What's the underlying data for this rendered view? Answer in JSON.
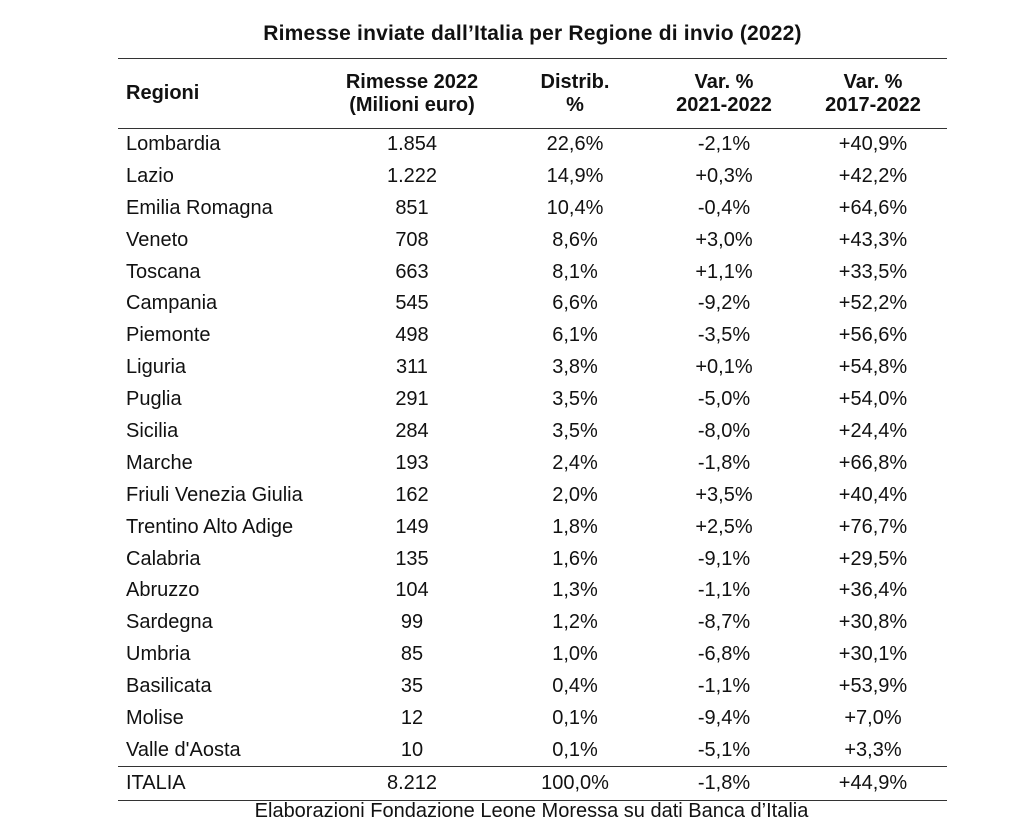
{
  "title": "Rimesse inviate dall’Italia per Regione di invio (2022)",
  "columns": [
    [
      "Regioni"
    ],
    [
      "Rimesse 2022",
      "(Milioni euro)"
    ],
    [
      "Distrib.",
      "%"
    ],
    [
      "Var. %",
      "2021-2022"
    ],
    [
      "Var. %",
      "2017-2022"
    ]
  ],
  "rows": [
    [
      "Lombardia",
      "1.854",
      "22,6%",
      "-2,1%",
      "+40,9%"
    ],
    [
      "Lazio",
      "1.222",
      "14,9%",
      "+0,3%",
      "+42,2%"
    ],
    [
      "Emilia Romagna",
      "851",
      "10,4%",
      "-0,4%",
      "+64,6%"
    ],
    [
      "Veneto",
      "708",
      "8,6%",
      "+3,0%",
      "+43,3%"
    ],
    [
      "Toscana",
      "663",
      "8,1%",
      "+1,1%",
      "+33,5%"
    ],
    [
      "Campania",
      "545",
      "6,6%",
      "-9,2%",
      "+52,2%"
    ],
    [
      "Piemonte",
      "498",
      "6,1%",
      "-3,5%",
      "+56,6%"
    ],
    [
      "Liguria",
      "311",
      "3,8%",
      "+0,1%",
      "+54,8%"
    ],
    [
      "Puglia",
      "291",
      "3,5%",
      "-5,0%",
      "+54,0%"
    ],
    [
      "Sicilia",
      "284",
      "3,5%",
      "-8,0%",
      "+24,4%"
    ],
    [
      "Marche",
      "193",
      "2,4%",
      "-1,8%",
      "+66,8%"
    ],
    [
      "Friuli Venezia Giulia",
      "162",
      "2,0%",
      "+3,5%",
      "+40,4%"
    ],
    [
      "Trentino Alto Adige",
      "149",
      "1,8%",
      "+2,5%",
      "+76,7%"
    ],
    [
      "Calabria",
      "135",
      "1,6%",
      "-9,1%",
      "+29,5%"
    ],
    [
      "Abruzzo",
      "104",
      "1,3%",
      "-1,1%",
      "+36,4%"
    ],
    [
      "Sardegna",
      "99",
      "1,2%",
      "-8,7%",
      "+30,8%"
    ],
    [
      "Umbria",
      "85",
      "1,0%",
      "-6,8%",
      "+30,1%"
    ],
    [
      "Basilicata",
      "35",
      "0,4%",
      "-1,1%",
      "+53,9%"
    ],
    [
      "Molise",
      "12",
      "0,1%",
      "-9,4%",
      "+7,0%"
    ],
    [
      "Valle d'Aosta",
      "10",
      "0,1%",
      "-5,1%",
      "+3,3%"
    ]
  ],
  "total": [
    "ITALIA",
    "8.212",
    "100,0%",
    "-1,8%",
    "+44,9%"
  ],
  "source": "Elaborazioni Fondazione Leone Moressa su dati Banca d’Italia"
}
